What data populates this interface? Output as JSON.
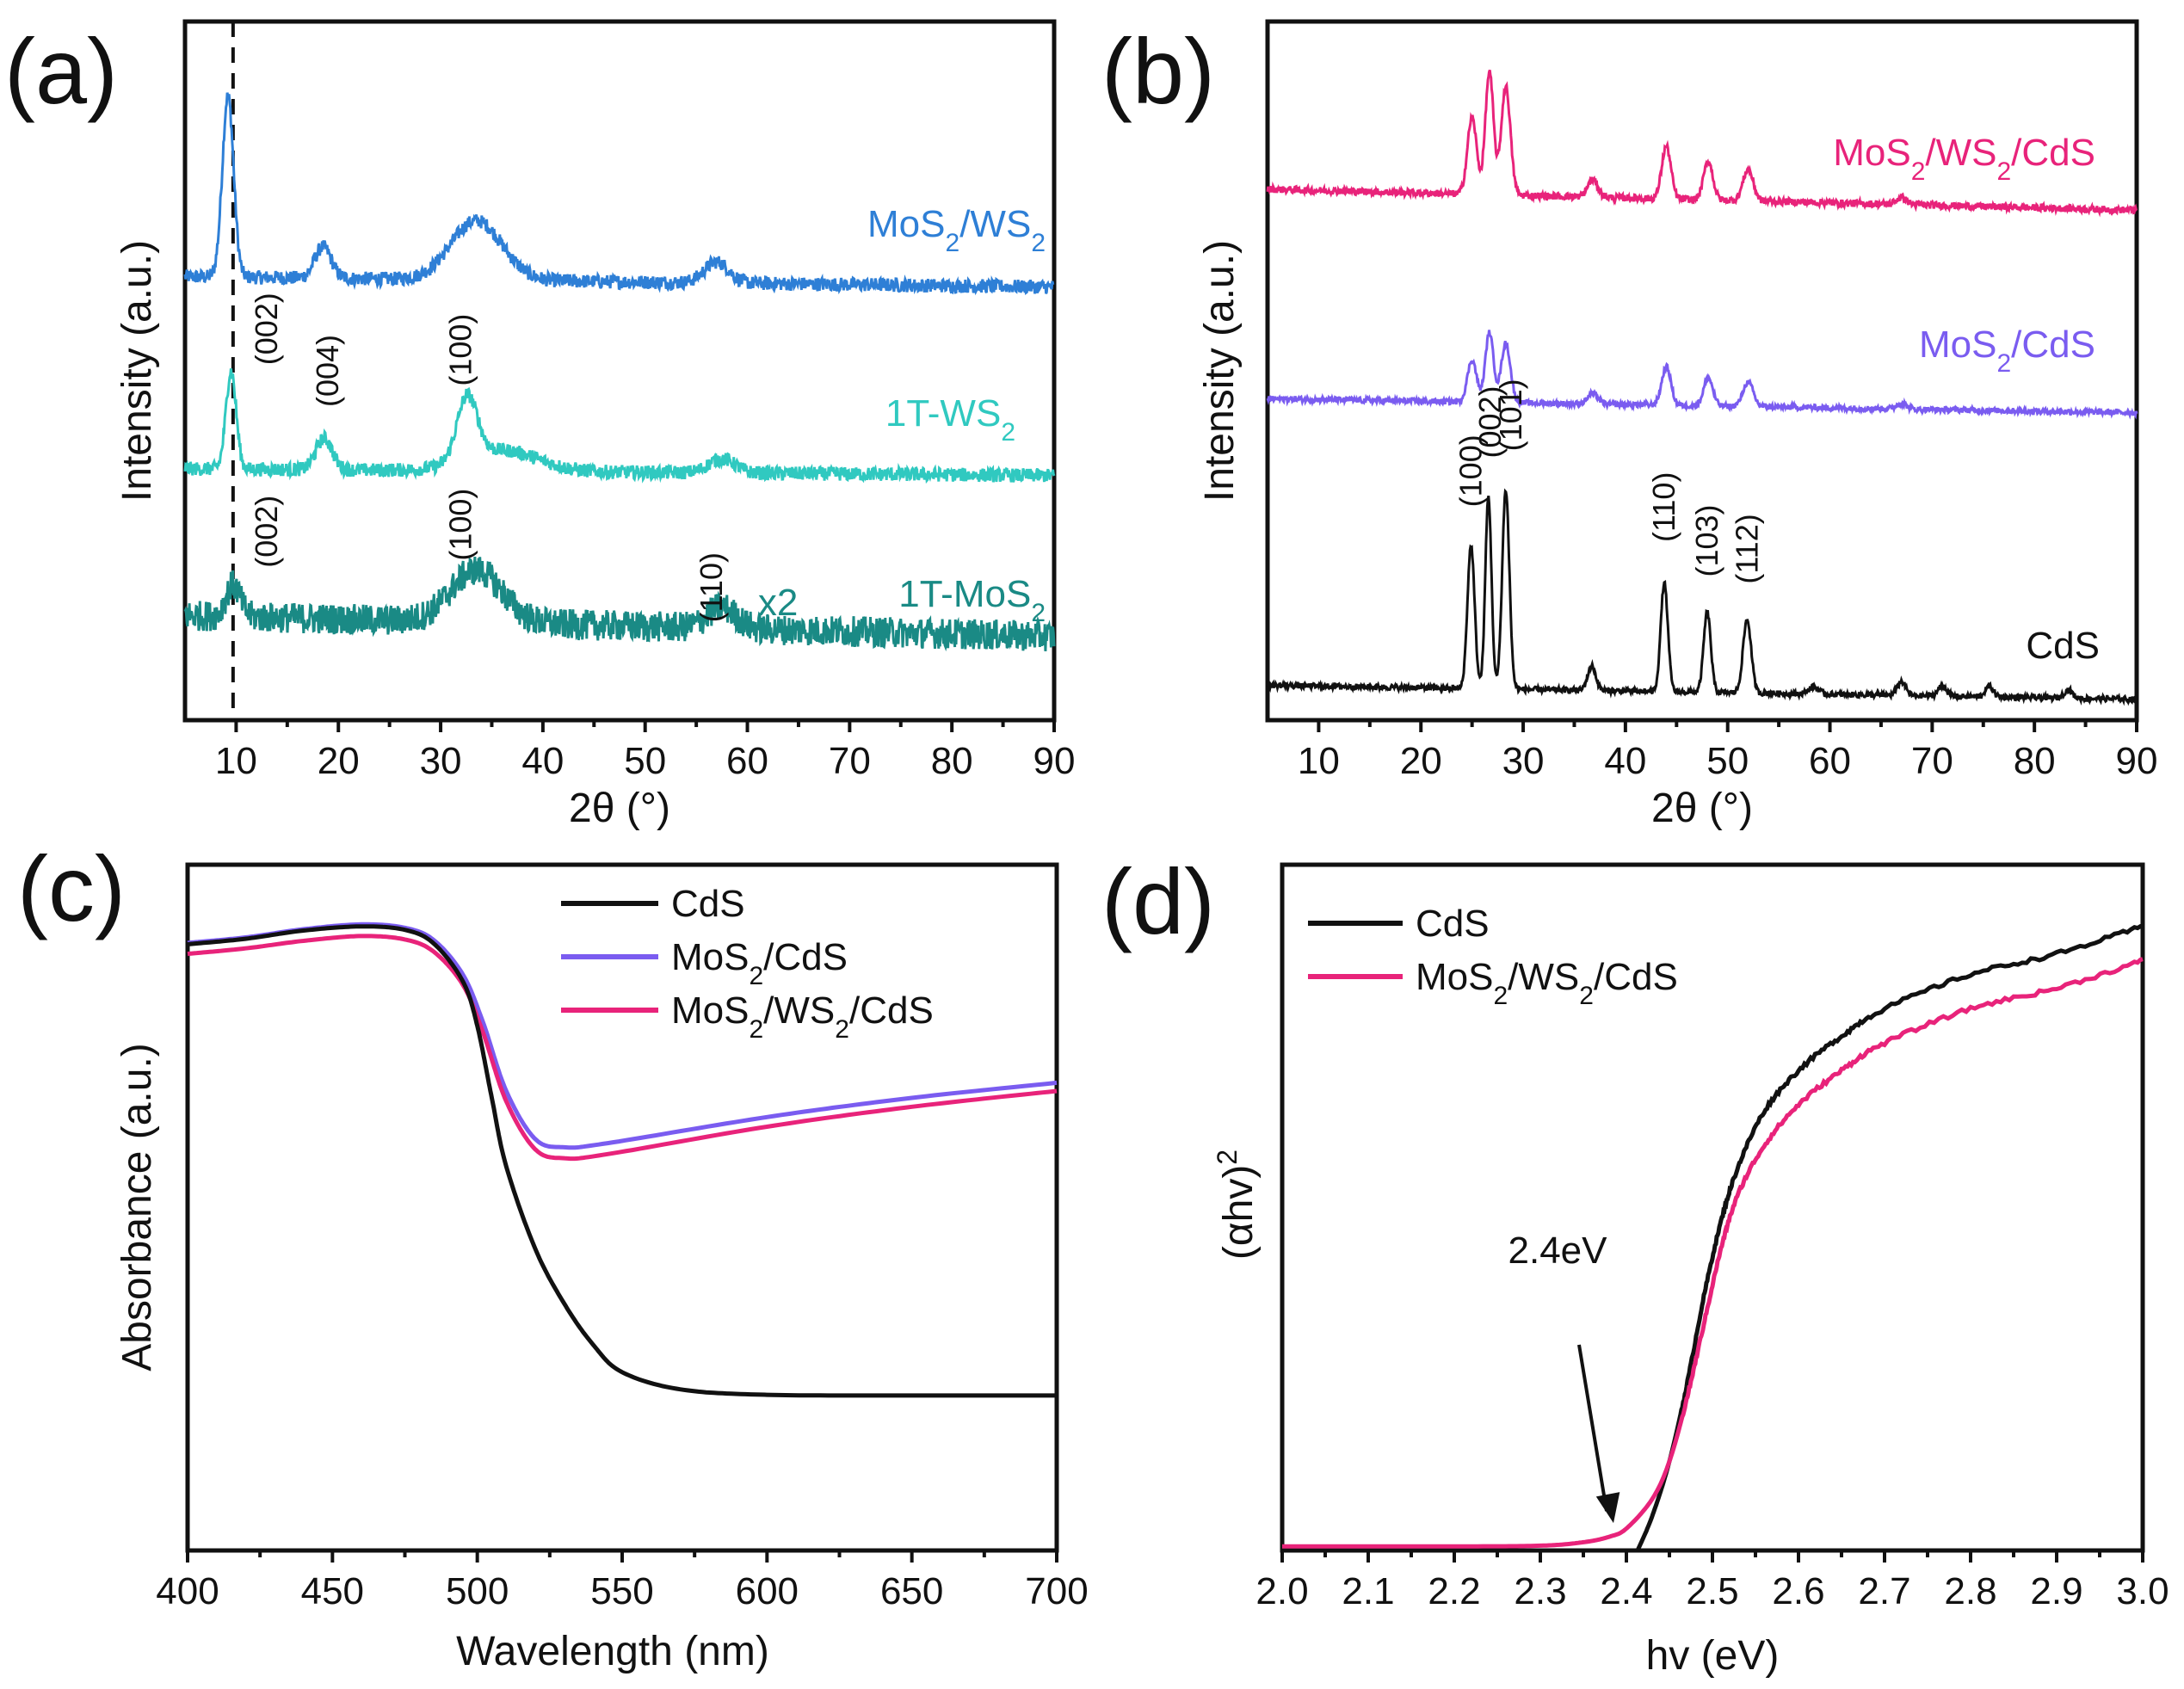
{
  "chart_data": [
    {
      "panel": "(a)",
      "type": "line",
      "xlabel": "2θ (°)",
      "ylabel": "Intensity (a.u.)",
      "xlim": [
        5,
        90
      ],
      "xticks": [
        "10",
        "20",
        "30",
        "40",
        "50",
        "60",
        "70",
        "80",
        "90"
      ],
      "ylim": [
        0,
        10
      ],
      "reference_line_x": 9.7,
      "series": [
        {
          "name": "MoS2/WS2",
          "label_base": "MoS",
          "label_parts": [
            "MoS",
            "2",
            "/WS",
            "2"
          ],
          "color": "#2e7fd6",
          "offset": 6.2,
          "noise": 0.1,
          "peaks": [
            [
              9.2,
              2.6,
              0.55
            ],
            [
              18.5,
              0.45,
              0.8
            ],
            [
              33.5,
              0.85,
              2.5
            ],
            [
              57,
              0.3,
              1.2
            ]
          ],
          "baseline": [
            [
              5,
              0.15
            ],
            [
              90,
              0.0
            ]
          ]
        },
        {
          "name": "1T-WS2",
          "label_parts": [
            "1T-WS",
            "2"
          ],
          "color": "#30c9c0",
          "offset": 3.5,
          "noise": 0.1,
          "peaks": [
            [
              9.5,
              1.4,
              0.5
            ],
            [
              18.6,
              0.45,
              0.8
            ],
            [
              32.6,
              0.9,
              1.0
            ],
            [
              36,
              0.3,
              3.5
            ],
            [
              57.5,
              0.2,
              1.3
            ]
          ],
          "baseline": [
            [
              5,
              0.1
            ],
            [
              90,
              0.0
            ]
          ]
        },
        {
          "name": "1T-MoS2",
          "label_parts": [
            "1T-MoS",
            "2"
          ],
          "color": "#1a8a85",
          "offset": 1.4,
          "noise": 0.22,
          "peaks": [
            [
              9.7,
              0.45,
              0.7
            ],
            [
              33.5,
              0.75,
              2.5
            ],
            [
              57.5,
              0.3,
              1.4
            ]
          ],
          "baseline": [
            [
              5,
              0.1
            ],
            [
              90,
              -0.2
            ]
          ]
        }
      ],
      "annotations": [
        {
          "text": "(002)",
          "x": 14,
          "y": 5.6
        },
        {
          "text": "(004)",
          "x": 20,
          "y": 5.0
        },
        {
          "text": "(100)",
          "x": 33,
          "y": 5.3
        },
        {
          "text": "(002)",
          "x": 14,
          "y": 2.7
        },
        {
          "text": "(100)",
          "x": 33,
          "y": 2.8
        },
        {
          "text": "(110)",
          "x": 57.5,
          "y": 1.9
        },
        {
          "text": "x2",
          "x": 63,
          "y": 1.5
        }
      ]
    },
    {
      "panel": "(b)",
      "type": "line",
      "xlabel": "2θ (°)",
      "ylabel": "Intensity (a.u.)",
      "xlim": [
        5,
        90
      ],
      "xticks": [
        "10",
        "20",
        "30",
        "40",
        "50",
        "60",
        "70",
        "80",
        "90"
      ],
      "ylim": [
        0,
        10
      ],
      "series": [
        {
          "name": "MoS2/WS2/CdS",
          "label_parts": [
            "MoS",
            "2",
            "/WS",
            "2",
            "/CdS"
          ],
          "color": "#e8237a",
          "offset": 7.5,
          "noise": 0.05,
          "peaks": [
            [
              25,
              1.1,
              0.45
            ],
            [
              26.7,
              1.75,
              0.4
            ],
            [
              28.3,
              1.55,
              0.45
            ],
            [
              36.8,
              0.25,
              0.5
            ],
            [
              44,
              0.75,
              0.45
            ],
            [
              48.1,
              0.55,
              0.45
            ],
            [
              52,
              0.45,
              0.5
            ],
            [
              67,
              0.1,
              0.5
            ]
          ],
          "baseline": [
            [
              5,
              0.1
            ],
            [
              90,
              -0.2
            ]
          ]
        },
        {
          "name": "MoS2/CdS",
          "label_parts": [
            "MoS",
            "2",
            "/CdS"
          ],
          "color": "#7a5cf0",
          "offset": 4.6,
          "noise": 0.04,
          "peaks": [
            [
              25,
              0.6,
              0.45
            ],
            [
              26.7,
              1.0,
              0.4
            ],
            [
              28.3,
              0.85,
              0.45
            ],
            [
              36.8,
              0.15,
              0.5
            ],
            [
              44,
              0.55,
              0.45
            ],
            [
              48.1,
              0.4,
              0.45
            ],
            [
              52,
              0.35,
              0.5
            ],
            [
              67,
              0.08,
              0.5
            ]
          ],
          "baseline": [
            [
              5,
              0.0
            ],
            [
              90,
              -0.2
            ]
          ]
        },
        {
          "name": "CdS",
          "label_parts": [
            "CdS"
          ],
          "color": "#111111",
          "offset": 0.5,
          "noise": 0.04,
          "peaks": [
            [
              24.9,
              2.05,
              0.35
            ],
            [
              26.6,
              2.75,
              0.3
            ],
            [
              28.3,
              2.85,
              0.35
            ],
            [
              36.7,
              0.35,
              0.4
            ],
            [
              43.8,
              1.55,
              0.35
            ],
            [
              48.0,
              1.15,
              0.35
            ],
            [
              51.9,
              1.05,
              0.4
            ],
            [
              58.4,
              0.1,
              0.5
            ],
            [
              67,
              0.2,
              0.4
            ],
            [
              71,
              0.15,
              0.4
            ],
            [
              75.6,
              0.15,
              0.4
            ],
            [
              83.3,
              0.12,
              0.4
            ]
          ],
          "baseline": [
            [
              5,
              0.0
            ],
            [
              90,
              -0.2
            ]
          ]
        }
      ],
      "annotations": [
        {
          "text": "(100)",
          "x": 24.9,
          "y": 3.05
        },
        {
          "text": "(002)",
          "x": 26.8,
          "y": 3.75
        },
        {
          "text": "(101)",
          "x": 28.8,
          "y": 3.85
        },
        {
          "text": "(110)",
          "x": 43.8,
          "y": 2.55
        },
        {
          "text": "(103)",
          "x": 48.0,
          "y": 2.05
        },
        {
          "text": "(112)",
          "x": 51.9,
          "y": 1.95
        }
      ]
    },
    {
      "panel": "(c)",
      "type": "line",
      "xlabel": "Wavelength (nm)",
      "ylabel": "Absorbance (a.u.)",
      "xlim": [
        400,
        700
      ],
      "xticks": [
        "400",
        "450",
        "500",
        "550",
        "600",
        "650",
        "700"
      ],
      "ylim": [
        0,
        1
      ],
      "series": [
        {
          "name": "CdS",
          "label_parts": [
            "CdS"
          ],
          "color": "#111111",
          "points": [
            [
              400,
              0.884
            ],
            [
              420,
              0.892
            ],
            [
              440,
              0.904
            ],
            [
              460,
              0.91
            ],
            [
              475,
              0.905
            ],
            [
              485,
              0.885
            ],
            [
              495,
              0.83
            ],
            [
              500,
              0.765
            ],
            [
              505,
              0.66
            ],
            [
              510,
              0.56
            ],
            [
              520,
              0.44
            ],
            [
              530,
              0.36
            ],
            [
              540,
              0.3
            ],
            [
              550,
              0.26
            ],
            [
              570,
              0.235
            ],
            [
              600,
              0.227
            ],
            [
              650,
              0.226
            ],
            [
              700,
              0.226
            ]
          ]
        },
        {
          "name": "MoS2/CdS",
          "label_parts": [
            "MoS",
            "2",
            "/CdS"
          ],
          "color": "#7a5cf0",
          "points": [
            [
              400,
              0.886
            ],
            [
              420,
              0.894
            ],
            [
              440,
              0.906
            ],
            [
              460,
              0.913
            ],
            [
              475,
              0.908
            ],
            [
              485,
              0.89
            ],
            [
              495,
              0.84
            ],
            [
              502,
              0.77
            ],
            [
              510,
              0.67
            ],
            [
              520,
              0.6
            ],
            [
              530,
              0.588
            ],
            [
              545,
              0.594
            ],
            [
              600,
              0.632
            ],
            [
              650,
              0.66
            ],
            [
              700,
              0.682
            ]
          ]
        },
        {
          "name": "MoS2/WS2/CdS",
          "label_parts": [
            "MoS",
            "2",
            "/WS",
            "2",
            "/CdS"
          ],
          "color": "#e8237a",
          "points": [
            [
              400,
              0.87
            ],
            [
              420,
              0.878
            ],
            [
              440,
              0.889
            ],
            [
              460,
              0.896
            ],
            [
              475,
              0.891
            ],
            [
              485,
              0.873
            ],
            [
              495,
              0.825
            ],
            [
              502,
              0.755
            ],
            [
              510,
              0.655
            ],
            [
              520,
              0.585
            ],
            [
              530,
              0.572
            ],
            [
              545,
              0.578
            ],
            [
              600,
              0.618
            ],
            [
              650,
              0.647
            ],
            [
              700,
              0.67
            ]
          ]
        }
      ]
    },
    {
      "panel": "(d)",
      "type": "line",
      "xlabel": "hv (eV)",
      "ylabel": "(αhv)",
      "ylabel_superscript": "2",
      "xlim": [
        2.0,
        3.0
      ],
      "xticks": [
        "2.0",
        "2.1",
        "2.2",
        "2.3",
        "2.4",
        "2.5",
        "2.6",
        "2.7",
        "2.8",
        "2.9",
        "3.0"
      ],
      "ylim": [
        0,
        1
      ],
      "series": [
        {
          "name": "CdS",
          "label_parts": [
            "CdS"
          ],
          "color": "#111111",
          "points": [
            [
              2.413,
              0.0
            ],
            [
              2.43,
              0.05
            ],
            [
              2.45,
              0.13
            ],
            [
              2.47,
              0.24
            ],
            [
              2.49,
              0.37
            ],
            [
              2.51,
              0.48
            ],
            [
              2.53,
              0.56
            ],
            [
              2.56,
              0.64
            ],
            [
              2.6,
              0.7
            ],
            [
              2.65,
              0.75
            ],
            [
              2.7,
              0.79
            ],
            [
              2.8,
              0.84
            ],
            [
              2.9,
              0.87
            ],
            [
              3.0,
              0.91
            ]
          ]
        },
        {
          "name": "MoS2/WS2/CdS",
          "label_parts": [
            "MoS",
            "2",
            "/WS",
            "2",
            "/CdS"
          ],
          "color": "#e8237a",
          "points": [
            [
              2.0,
              0.006
            ],
            [
              2.2,
              0.006
            ],
            [
              2.3,
              0.007
            ],
            [
              2.35,
              0.012
            ],
            [
              2.38,
              0.02
            ],
            [
              2.4,
              0.032
            ],
            [
              2.43,
              0.075
            ],
            [
              2.45,
              0.13
            ],
            [
              2.47,
              0.22
            ],
            [
              2.49,
              0.33
            ],
            [
              2.51,
              0.44
            ],
            [
              2.53,
              0.52
            ],
            [
              2.56,
              0.59
            ],
            [
              2.6,
              0.65
            ],
            [
              2.65,
              0.7
            ],
            [
              2.7,
              0.74
            ],
            [
              2.8,
              0.79
            ],
            [
              2.9,
              0.82
            ],
            [
              3.0,
              0.86
            ]
          ]
        }
      ],
      "annotations": [
        {
          "text": "2.4eV",
          "x": 2.32,
          "y": 0.4,
          "arrow_to": [
            2.385,
            0.04
          ]
        }
      ]
    }
  ]
}
